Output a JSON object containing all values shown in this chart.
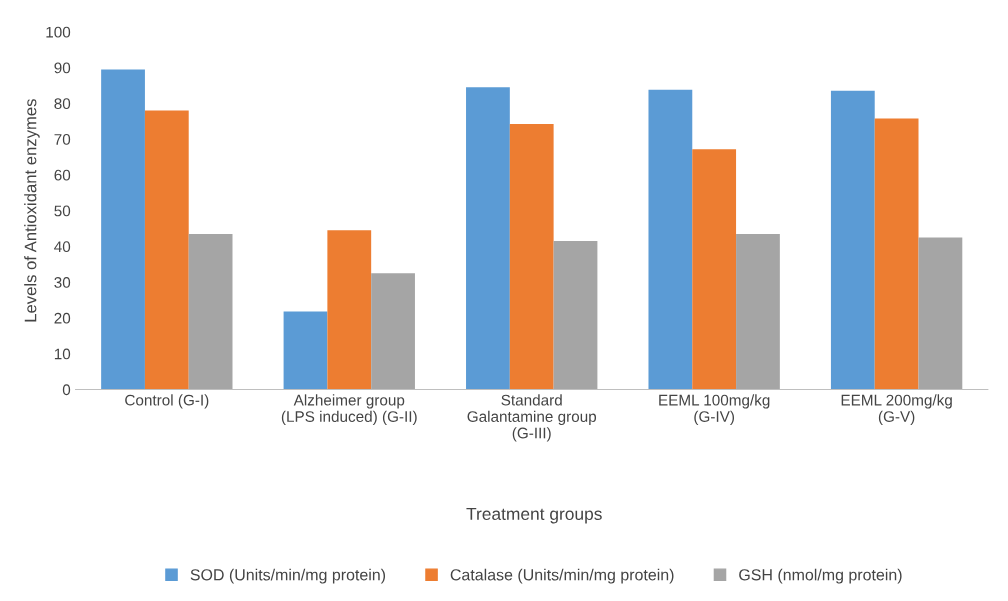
{
  "chart_data": {
    "type": "bar",
    "xlabel": "Treatment groups",
    "ylabel": "Levels of Antioxidant enzymes",
    "categories": [
      "Control (G-I)",
      "Alzheimer group\n(LPS induced) (G-II)",
      "Standard\nGalantamine group\n(G-III)",
      "EEML 100mg/kg\n(G-IV)",
      "EEML 200mg/kg\n(G-V)"
    ],
    "series": [
      {
        "name": "SOD (Units/min/mg protein)",
        "color": "#5b9bd5",
        "values": [
          89.5,
          21.8,
          84.5,
          83.8,
          83.5
        ]
      },
      {
        "name": "Catalase (Units/min/mg protein)",
        "color": "#ed7d31",
        "values": [
          78,
          44.5,
          74.2,
          67.2,
          75.8
        ]
      },
      {
        "name": "GSH (nmol/mg protein)",
        "color": "#a5a5a5",
        "values": [
          43.5,
          32.5,
          41.5,
          43.5,
          42.5
        ]
      }
    ],
    "ylim": [
      0,
      100
    ],
    "yticks": [
      0,
      10,
      20,
      30,
      40,
      50,
      60,
      70,
      80,
      90,
      100
    ],
    "grid": false,
    "legend": "bottom"
  }
}
